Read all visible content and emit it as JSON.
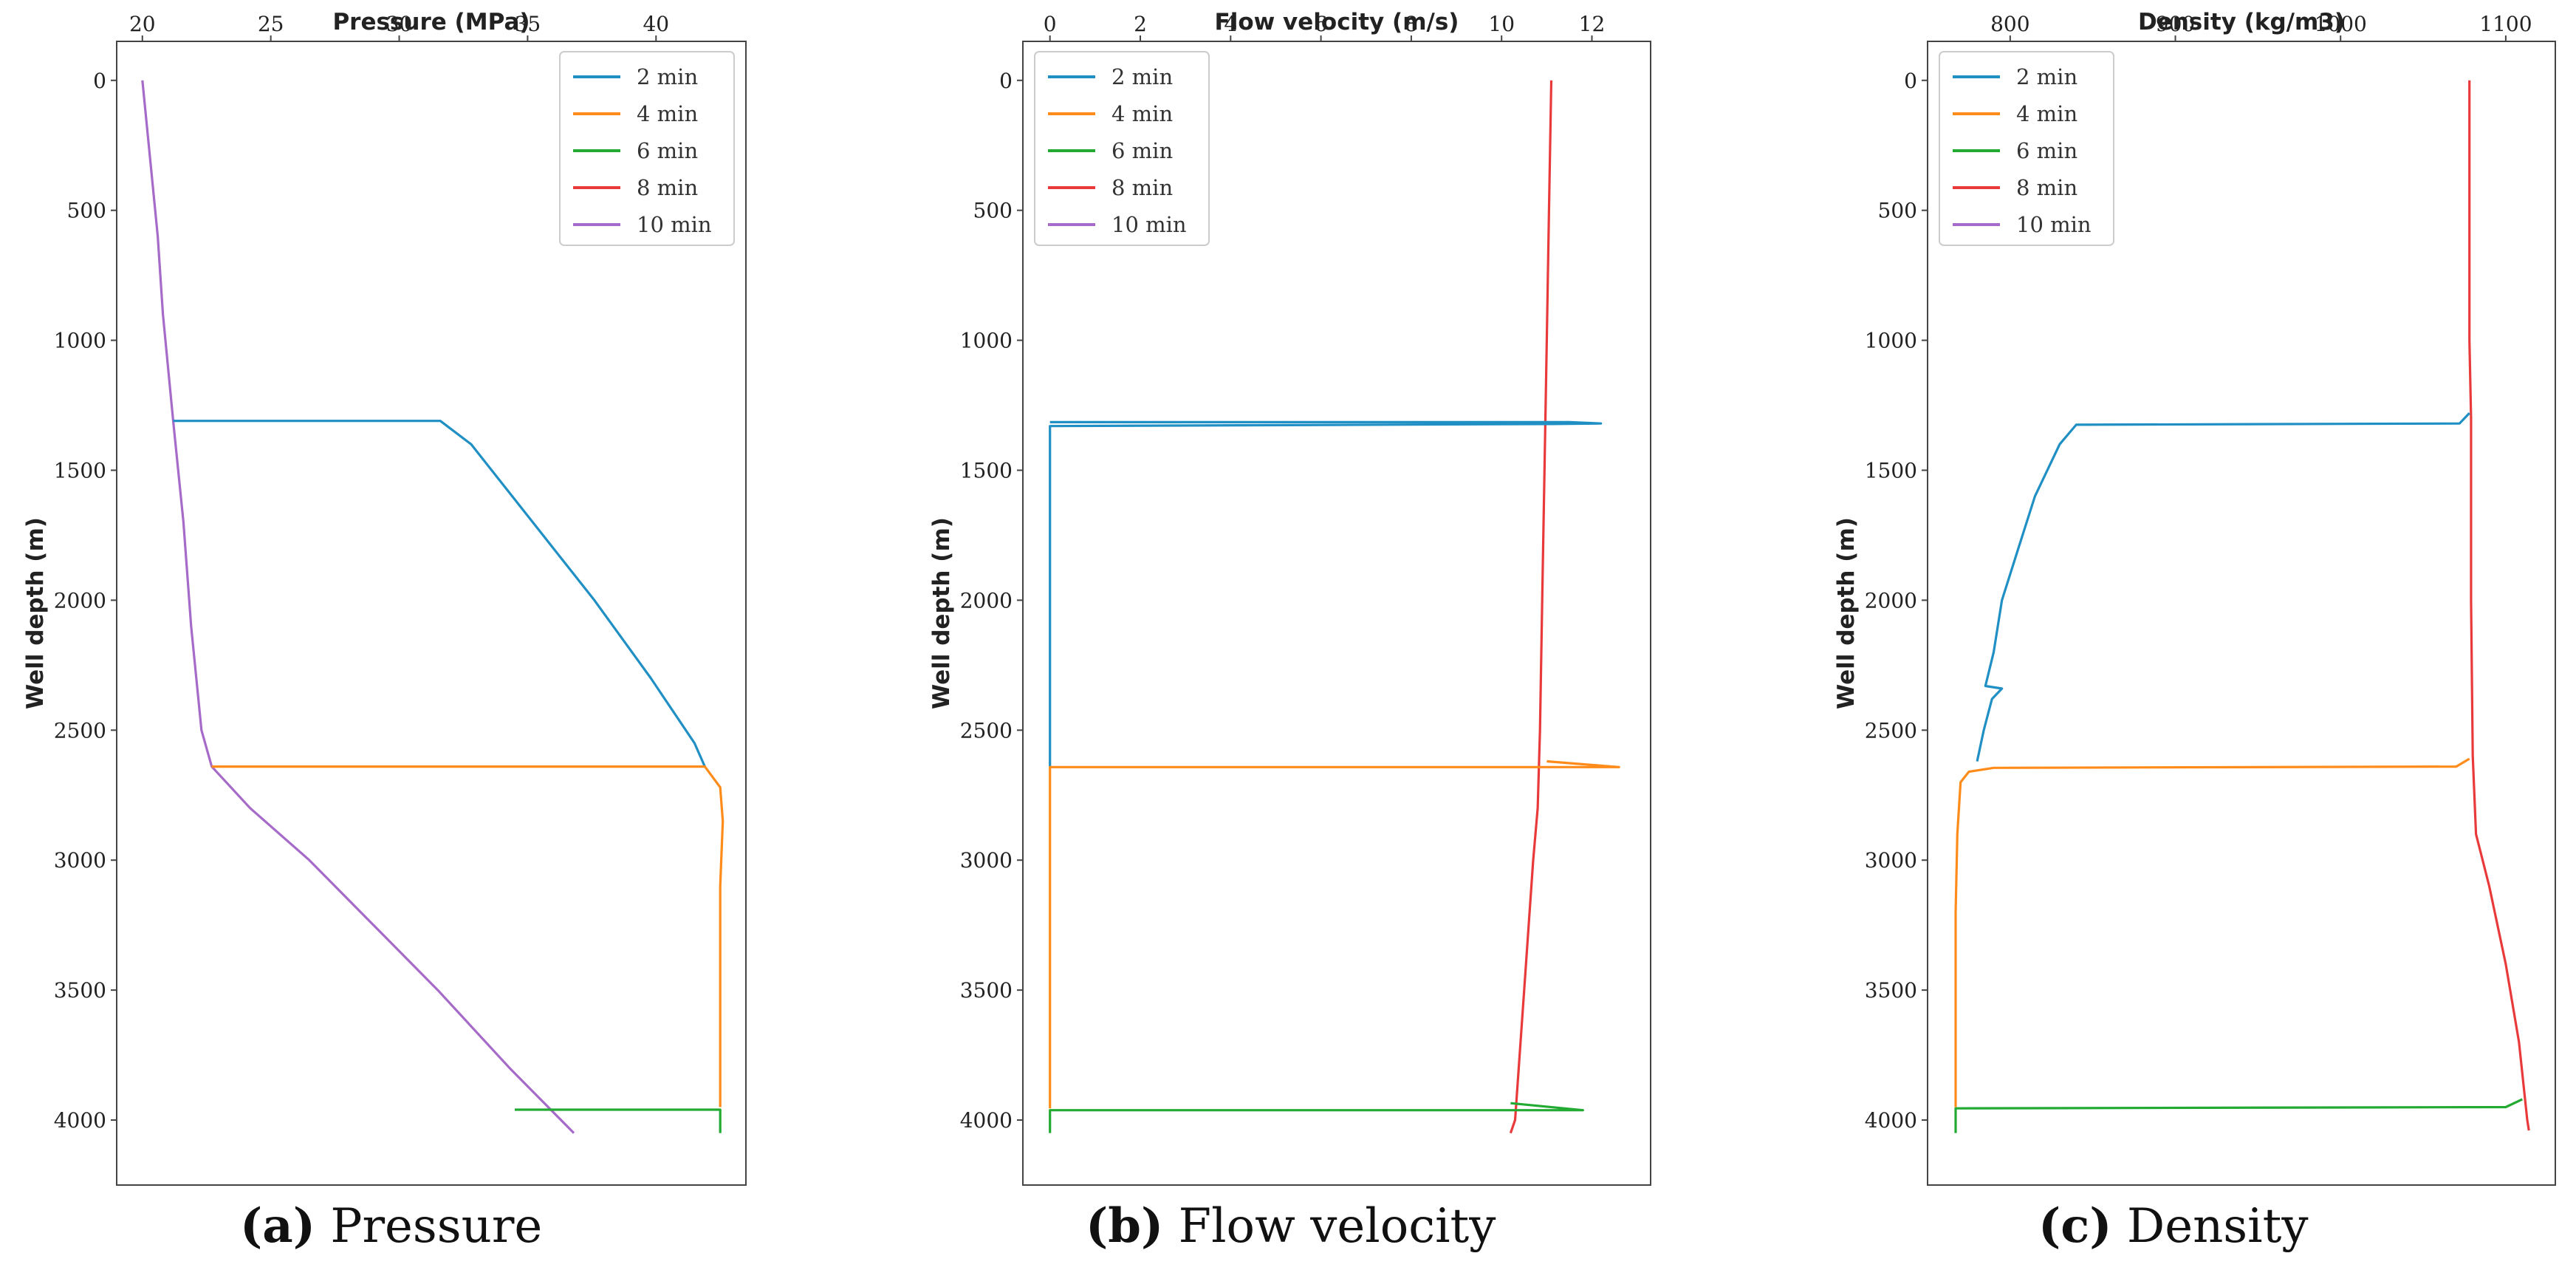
{
  "colors": {
    "2 min": "#1f8fc4",
    "4 min": "#ff8c1a",
    "6 min": "#22aa33",
    "8 min": "#e83a3a",
    "10 min": "#a66ac8"
  },
  "captions": [
    {
      "letter": "(a)",
      "text": " Pressure"
    },
    {
      "letter": "(b)",
      "text": " Flow velocity"
    },
    {
      "letter": "(c)",
      "text": " Density"
    }
  ],
  "chart_data": [
    {
      "type": "line",
      "title": "Pressure",
      "xlabel": "Pressure (MPa)",
      "ylabel": "Well depth (m)",
      "xlim": [
        19,
        43.5
      ],
      "ylim": [
        4250,
        -150
      ],
      "xticks": [
        20,
        25,
        30,
        35,
        40
      ],
      "yticks": [
        0,
        500,
        1000,
        1500,
        2000,
        2500,
        3000,
        3500,
        4000
      ],
      "legend": [
        "2 min",
        "4 min",
        "6 min",
        "8 min",
        "10 min"
      ],
      "legend_position": "top-right",
      "series": [
        {
          "name": "10 min",
          "points": [
            [
              20.0,
              0
            ],
            [
              20.3,
              300
            ],
            [
              20.6,
              600
            ],
            [
              20.8,
              900
            ],
            [
              21.2,
              1310
            ],
            [
              21.6,
              1700
            ],
            [
              21.9,
              2100
            ],
            [
              22.3,
              2500
            ],
            [
              22.7,
              2640
            ],
            [
              24.2,
              2800
            ],
            [
              26.5,
              3000
            ],
            [
              29.0,
              3250
            ],
            [
              31.5,
              3500
            ],
            [
              34.3,
              3800
            ],
            [
              36.8,
              4050
            ]
          ]
        },
        {
          "name": "2 min",
          "points": [
            [
              21.2,
              1310
            ],
            [
              31.6,
              1310
            ],
            [
              32.8,
              1400
            ],
            [
              35.2,
              1700
            ],
            [
              37.6,
              2000
            ],
            [
              39.8,
              2300
            ],
            [
              41.5,
              2550
            ],
            [
              41.9,
              2640
            ]
          ]
        },
        {
          "name": "4 min",
          "points": [
            [
              22.7,
              2640
            ],
            [
              41.9,
              2640
            ],
            [
              42.5,
              2720
            ],
            [
              42.6,
              2850
            ],
            [
              42.5,
              3100
            ],
            [
              42.5,
              3950
            ]
          ]
        },
        {
          "name": "6 min",
          "points": [
            [
              34.5,
              3960
            ],
            [
              42.5,
              3960
            ],
            [
              42.5,
              4050
            ]
          ]
        }
      ]
    },
    {
      "type": "line",
      "title": "Flow velocity",
      "xlabel": "Flow velocity (m/s)",
      "ylabel": "Well depth (m)",
      "xlim": [
        -0.6,
        13.3
      ],
      "ylim": [
        4250,
        -150
      ],
      "xticks": [
        0,
        2,
        4,
        6,
        8,
        10,
        12
      ],
      "yticks": [
        0,
        500,
        1000,
        1500,
        2000,
        2500,
        3000,
        3500,
        4000
      ],
      "legend": [
        "2 min",
        "4 min",
        "6 min",
        "8 min",
        "10 min"
      ],
      "legend_position": "top-left",
      "series": [
        {
          "name": "8 min",
          "points": [
            [
              11.1,
              0
            ],
            [
              11.05,
              500
            ],
            [
              11.0,
              1000
            ],
            [
              10.95,
              1500
            ],
            [
              10.9,
              2000
            ],
            [
              10.85,
              2500
            ],
            [
              10.8,
              2800
            ],
            [
              10.7,
              3000
            ],
            [
              10.5,
              3500
            ],
            [
              10.3,
              4000
            ],
            [
              10.2,
              4050
            ]
          ]
        },
        {
          "name": "2 min",
          "points": [
            [
              0.0,
              1315
            ],
            [
              11.5,
              1315
            ],
            [
              12.2,
              1320
            ],
            [
              11.1,
              1322
            ],
            [
              0.0,
              1330
            ],
            [
              0.0,
              2640
            ]
          ]
        },
        {
          "name": "4 min",
          "points": [
            [
              11.0,
              2620
            ],
            [
              12.6,
              2642
            ],
            [
              0.0,
              2642
            ],
            [
              0.0,
              3955
            ]
          ]
        },
        {
          "name": "6 min",
          "points": [
            [
              10.2,
              3935
            ],
            [
              11.8,
              3962
            ],
            [
              0.0,
              3962
            ],
            [
              0.0,
              4050
            ]
          ]
        }
      ]
    },
    {
      "type": "line",
      "title": "Density",
      "xlabel": "Density (kg/m3)",
      "ylabel": "Well depth (m)",
      "xlim": [
        750,
        1130
      ],
      "ylim": [
        4250,
        -150
      ],
      "xticks": [
        800,
        900,
        1000,
        1100
      ],
      "yticks": [
        0,
        500,
        1000,
        1500,
        2000,
        2500,
        3000,
        3500,
        4000
      ],
      "legend": [
        "2 min",
        "4 min",
        "6 min",
        "8 min",
        "10 min"
      ],
      "legend_position": "top-left",
      "series": [
        {
          "name": "8 min",
          "points": [
            [
              1078,
              0
            ],
            [
              1078,
              1000
            ],
            [
              1079,
              1300
            ],
            [
              1079,
              2000
            ],
            [
              1080,
              2600
            ],
            [
              1082,
              2900
            ],
            [
              1090,
              3100
            ],
            [
              1100,
              3400
            ],
            [
              1108,
              3700
            ],
            [
              1113,
              4000
            ],
            [
              1114,
              4040
            ]
          ]
        },
        {
          "name": "2 min",
          "points": [
            [
              1078,
              1280
            ],
            [
              1072,
              1320
            ],
            [
              840,
              1325
            ],
            [
              830,
              1400
            ],
            [
              815,
              1600
            ],
            [
              805,
              1800
            ],
            [
              795,
              2000
            ],
            [
              790,
              2200
            ],
            [
              785,
              2330
            ],
            [
              795,
              2340
            ],
            [
              789,
              2380
            ],
            [
              784,
              2500
            ],
            [
              780,
              2620
            ]
          ]
        },
        {
          "name": "4 min",
          "points": [
            [
              1078,
              2610
            ],
            [
              1070,
              2640
            ],
            [
              790,
              2645
            ],
            [
              775,
              2660
            ],
            [
              770,
              2700
            ],
            [
              768,
              2900
            ],
            [
              767,
              3200
            ],
            [
              767,
              3600
            ],
            [
              767,
              3950
            ]
          ]
        },
        {
          "name": "6 min",
          "points": [
            [
              1110,
              3920
            ],
            [
              1100,
              3950
            ],
            [
              767,
              3955
            ],
            [
              767,
              4050
            ]
          ]
        }
      ]
    }
  ]
}
